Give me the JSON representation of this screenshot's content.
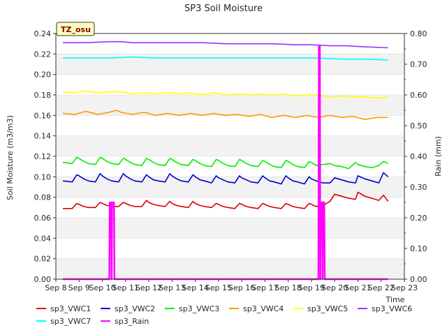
{
  "chart_data": {
    "type": "line",
    "title": "SP3 Soil Moisture",
    "xlabel": "Time",
    "ylabel": "Soil Moisture (m3/m3)",
    "y2label": "Rain (mm)",
    "site_label": "TZ_osu",
    "xlim": [
      0,
      15
    ],
    "ylim": [
      0.0,
      0.24
    ],
    "y2lim": [
      0.0,
      0.8
    ],
    "x_ticks": [
      "Sep 8",
      "Sep 9",
      "Sep 10",
      "Sep 11",
      "Sep 12",
      "Sep 13",
      "Sep 14",
      "Sep 15",
      "Sep 16",
      "Sep 17",
      "Sep 18",
      "Sep 19",
      "Sep 20",
      "Sep 21",
      "Sep 22",
      "Sep 23"
    ],
    "y_ticks": [
      "0.00",
      "0.02",
      "0.04",
      "0.06",
      "0.08",
      "0.10",
      "0.12",
      "0.14",
      "0.16",
      "0.18",
      "0.20",
      "0.22",
      "0.24"
    ],
    "y2_ticks": [
      "0.00",
      "0.10",
      "0.20",
      "0.30",
      "0.40",
      "0.50",
      "0.60",
      "0.70",
      "0.80"
    ],
    "grid": "horizontal bands",
    "legend_position": "bottom",
    "series": [
      {
        "name": "sp3_VWC1",
        "color": "#dd0000",
        "axis": "left",
        "x": [
          0.3,
          0.7,
          0.9,
          1.0,
          1.2,
          1.4,
          1.7,
          1.9,
          2.0,
          2.2,
          2.4,
          2.7,
          2.9,
          3.0,
          3.2,
          3.4,
          3.7,
          3.9,
          4.0,
          4.2,
          4.4,
          4.7,
          4.9,
          5.0,
          5.2,
          5.4,
          5.7,
          5.9,
          6.0,
          6.2,
          6.4,
          6.7,
          6.9,
          7.0,
          7.2,
          7.4,
          7.7,
          7.9,
          8.0,
          8.2,
          8.4,
          8.7,
          8.9,
          9.0,
          9.2,
          9.4,
          9.7,
          9.9,
          10.0,
          10.2,
          10.4,
          10.7,
          10.9,
          11.0,
          11.2,
          11.5,
          11.8,
          12.0,
          12.3,
          12.6,
          12.9,
          13.0,
          13.3,
          13.6,
          13.9,
          14.1,
          14.3
        ],
        "y": [
          0.069,
          0.069,
          0.074,
          0.073,
          0.071,
          0.07,
          0.07,
          0.075,
          0.074,
          0.072,
          0.071,
          0.071,
          0.075,
          0.074,
          0.072,
          0.071,
          0.071,
          0.077,
          0.075,
          0.073,
          0.072,
          0.071,
          0.076,
          0.074,
          0.072,
          0.071,
          0.07,
          0.076,
          0.074,
          0.072,
          0.071,
          0.07,
          0.074,
          0.073,
          0.071,
          0.07,
          0.069,
          0.074,
          0.073,
          0.071,
          0.07,
          0.069,
          0.074,
          0.073,
          0.071,
          0.07,
          0.069,
          0.074,
          0.073,
          0.071,
          0.07,
          0.069,
          0.074,
          0.073,
          0.071,
          0.072,
          0.076,
          0.083,
          0.081,
          0.079,
          0.078,
          0.085,
          0.081,
          0.079,
          0.077,
          0.082,
          0.076
        ]
      },
      {
        "name": "sp3_VWC2",
        "color": "#0000cc",
        "axis": "left",
        "x": [
          0.3,
          0.7,
          0.9,
          1.0,
          1.2,
          1.4,
          1.7,
          1.9,
          2.0,
          2.2,
          2.4,
          2.7,
          2.9,
          3.0,
          3.2,
          3.4,
          3.7,
          3.9,
          4.0,
          4.2,
          4.4,
          4.7,
          4.9,
          5.0,
          5.2,
          5.4,
          5.7,
          5.9,
          6.0,
          6.2,
          6.4,
          6.7,
          6.9,
          7.0,
          7.2,
          7.4,
          7.7,
          7.9,
          8.0,
          8.2,
          8.4,
          8.7,
          8.9,
          9.0,
          9.2,
          9.4,
          9.7,
          9.9,
          10.0,
          10.2,
          10.4,
          10.7,
          10.9,
          11.0,
          11.2,
          11.5,
          11.8,
          12.0,
          12.3,
          12.6,
          12.9,
          13.0,
          13.3,
          13.6,
          13.9,
          14.1,
          14.3
        ],
        "y": [
          0.096,
          0.095,
          0.102,
          0.101,
          0.098,
          0.096,
          0.095,
          0.103,
          0.101,
          0.098,
          0.096,
          0.095,
          0.103,
          0.101,
          0.098,
          0.096,
          0.095,
          0.102,
          0.1,
          0.097,
          0.096,
          0.095,
          0.103,
          0.101,
          0.098,
          0.096,
          0.095,
          0.102,
          0.1,
          0.097,
          0.096,
          0.094,
          0.101,
          0.099,
          0.097,
          0.095,
          0.094,
          0.101,
          0.099,
          0.097,
          0.095,
          0.094,
          0.101,
          0.099,
          0.096,
          0.095,
          0.093,
          0.101,
          0.099,
          0.096,
          0.095,
          0.093,
          0.1,
          0.098,
          0.096,
          0.094,
          0.094,
          0.099,
          0.097,
          0.095,
          0.094,
          0.101,
          0.098,
          0.096,
          0.094,
          0.104,
          0.1
        ]
      },
      {
        "name": "sp3_VWC3",
        "color": "#00ee00",
        "axis": "left",
        "x": [
          0.3,
          0.7,
          0.9,
          1.0,
          1.2,
          1.4,
          1.7,
          1.9,
          2.0,
          2.2,
          2.4,
          2.7,
          2.9,
          3.0,
          3.2,
          3.4,
          3.7,
          3.9,
          4.0,
          4.2,
          4.4,
          4.7,
          4.9,
          5.0,
          5.2,
          5.4,
          5.7,
          5.9,
          6.0,
          6.2,
          6.4,
          6.7,
          6.9,
          7.0,
          7.2,
          7.4,
          7.7,
          7.9,
          8.0,
          8.2,
          8.4,
          8.7,
          8.9,
          9.0,
          9.2,
          9.4,
          9.7,
          9.9,
          10.0,
          10.2,
          10.4,
          10.7,
          10.9,
          11.0,
          11.2,
          11.5,
          11.8,
          12.0,
          12.3,
          12.6,
          12.9,
          13.0,
          13.3,
          13.6,
          13.9,
          14.1,
          14.3
        ],
        "y": [
          0.114,
          0.113,
          0.119,
          0.118,
          0.115,
          0.113,
          0.112,
          0.119,
          0.118,
          0.115,
          0.113,
          0.112,
          0.118,
          0.117,
          0.114,
          0.112,
          0.111,
          0.118,
          0.117,
          0.114,
          0.112,
          0.111,
          0.118,
          0.117,
          0.114,
          0.112,
          0.111,
          0.117,
          0.116,
          0.113,
          0.111,
          0.11,
          0.117,
          0.116,
          0.113,
          0.111,
          0.11,
          0.117,
          0.116,
          0.113,
          0.111,
          0.11,
          0.116,
          0.115,
          0.112,
          0.11,
          0.109,
          0.116,
          0.115,
          0.112,
          0.11,
          0.109,
          0.115,
          0.114,
          0.111,
          0.112,
          0.113,
          0.111,
          0.11,
          0.108,
          0.114,
          0.112,
          0.11,
          0.109,
          0.111,
          0.115,
          0.113
        ]
      },
      {
        "name": "sp3_VWC4",
        "color": "#ff9900",
        "axis": "left",
        "x": [
          0.3,
          0.8,
          1.3,
          1.8,
          2.3,
          2.6,
          2.8,
          3.3,
          3.8,
          4.3,
          4.8,
          5.3,
          5.8,
          6.3,
          6.8,
          7.3,
          7.8,
          8.3,
          8.8,
          9.3,
          9.8,
          10.3,
          10.8,
          11.3,
          11.8,
          12.3,
          12.8,
          13.3,
          13.8,
          14.3
        ],
        "y": [
          0.162,
          0.161,
          0.164,
          0.161,
          0.163,
          0.165,
          0.163,
          0.161,
          0.163,
          0.16,
          0.162,
          0.16,
          0.162,
          0.16,
          0.162,
          0.16,
          0.161,
          0.159,
          0.161,
          0.158,
          0.16,
          0.158,
          0.16,
          0.158,
          0.16,
          0.158,
          0.159,
          0.156,
          0.158,
          0.158
        ]
      },
      {
        "name": "sp3_VWC5",
        "color": "#ffff00",
        "axis": "left",
        "x": [
          0.3,
          0.8,
          1.3,
          1.8,
          2.3,
          2.8,
          3.3,
          3.8,
          4.3,
          4.8,
          5.3,
          5.8,
          6.3,
          6.8,
          7.3,
          7.8,
          8.3,
          8.8,
          9.3,
          9.8,
          10.3,
          10.8,
          11.3,
          11.8,
          12.3,
          12.8,
          13.3,
          13.8,
          14.3
        ],
        "y": [
          0.183,
          0.182,
          0.184,
          0.182,
          0.183,
          0.183,
          0.181,
          0.182,
          0.181,
          0.182,
          0.181,
          0.182,
          0.18,
          0.182,
          0.18,
          0.181,
          0.18,
          0.181,
          0.18,
          0.181,
          0.179,
          0.18,
          0.18,
          0.178,
          0.179,
          0.178,
          0.178,
          0.177,
          0.178
        ]
      },
      {
        "name": "sp3_VWC6",
        "color": "#9933ff",
        "axis": "left",
        "x": [
          0.3,
          1.3,
          2.3,
          2.8,
          3.3,
          4.3,
          5.3,
          6.3,
          7.3,
          8.3,
          9.3,
          10.3,
          11.0,
          11.8,
          12.5,
          13.3,
          14.3
        ],
        "y": [
          0.231,
          0.231,
          0.232,
          0.232,
          0.231,
          0.231,
          0.231,
          0.231,
          0.23,
          0.23,
          0.23,
          0.229,
          0.229,
          0.228,
          0.228,
          0.227,
          0.226
        ]
      },
      {
        "name": "sp3_VWC7",
        "color": "#00ffff",
        "axis": "left",
        "x": [
          0.3,
          1.3,
          2.3,
          3.3,
          4.3,
          5.3,
          6.3,
          7.3,
          8.3,
          9.3,
          10.3,
          11.3,
          12.3,
          13.3,
          14.3
        ],
        "y": [
          0.216,
          0.216,
          0.216,
          0.217,
          0.216,
          0.216,
          0.216,
          0.216,
          0.216,
          0.216,
          0.216,
          0.216,
          0.215,
          0.215,
          0.214
        ]
      },
      {
        "name": "sp3_Rain",
        "color": "#ff00ff",
        "axis": "right",
        "x": [
          0.3,
          2.3,
          2.32,
          2.38,
          2.4,
          2.42,
          2.44,
          2.5,
          2.52,
          11.3,
          11.32,
          11.36,
          11.38,
          11.4,
          11.42,
          11.46,
          11.48,
          11.5,
          11.52,
          11.55,
          11.57,
          14.3
        ],
        "y": [
          0.0,
          0.0,
          0.25,
          0.25,
          0.0,
          0.25,
          0.25,
          0.25,
          0.0,
          0.0,
          0.76,
          0.76,
          0.0,
          0.25,
          0.25,
          0.25,
          0.0,
          0.25,
          0.25,
          0.25,
          0.0,
          0.0
        ]
      }
    ]
  }
}
